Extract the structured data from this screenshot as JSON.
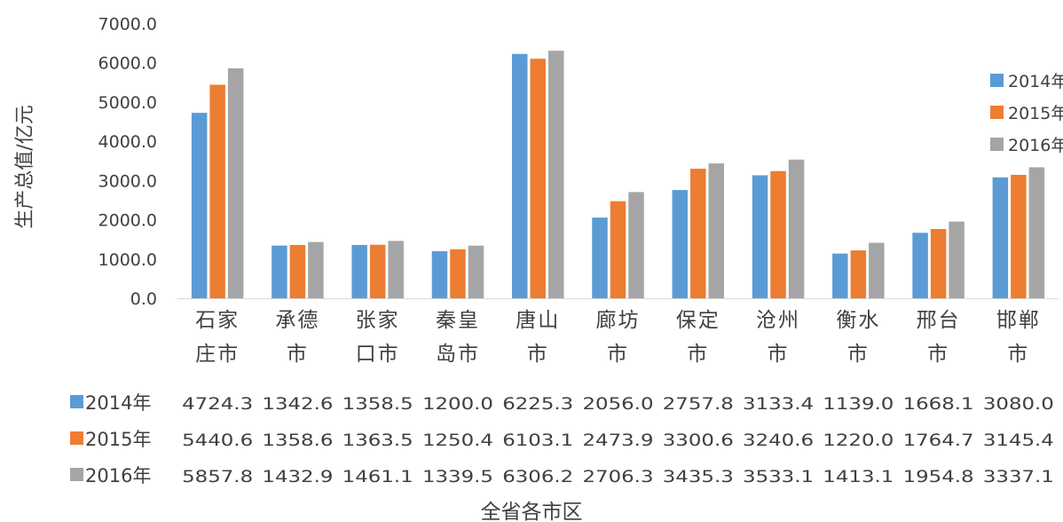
{
  "chart_data": {
    "type": "bar",
    "title": "",
    "xlabel": "全省各市区",
    "ylabel": "生产总值/亿元",
    "ylim": [
      0,
      7000
    ],
    "yticks": [
      "0.0",
      "1000.0",
      "2000.0",
      "3000.0",
      "4000.0",
      "5000.0",
      "6000.0",
      "7000.0"
    ],
    "categories": [
      [
        "石家",
        "庄市"
      ],
      [
        "承德",
        "市"
      ],
      [
        "张家",
        "口市"
      ],
      [
        "秦皇",
        "岛市"
      ],
      [
        "唐山",
        "市"
      ],
      [
        "廊坊",
        "市"
      ],
      [
        "保定",
        "市"
      ],
      [
        "沧州",
        "市"
      ],
      [
        "衡水",
        "市"
      ],
      [
        "邢台",
        "市"
      ],
      [
        "邯郸",
        "市"
      ]
    ],
    "series": [
      {
        "name": "2014年",
        "color": "#5b9bd5",
        "values": [
          4724.3,
          1342.6,
          1358.5,
          1200.0,
          6225.3,
          2056.0,
          2757.8,
          3133.4,
          1139.0,
          1668.1,
          3080.0
        ],
        "labels": [
          "4724.3",
          "1342.6",
          "1358.5",
          "1200.0",
          "6225.3",
          "2056.0",
          "2757.8",
          "3133.4",
          "1139.0",
          "1668.1",
          "3080.0"
        ]
      },
      {
        "name": "2015年",
        "color": "#ed7d31",
        "values": [
          5440.6,
          1358.6,
          1363.5,
          1250.4,
          6103.1,
          2473.9,
          3300.6,
          3240.6,
          1220.0,
          1764.7,
          3145.4
        ],
        "labels": [
          "5440.6",
          "1358.6",
          "1363.5",
          "1250.4",
          "6103.1",
          "2473.9",
          "3300.6",
          "3240.6",
          "1220.0",
          "1764.7",
          "3145.4"
        ]
      },
      {
        "name": "2016年",
        "color": "#a5a5a5",
        "values": [
          5857.8,
          1432.9,
          1461.1,
          1339.5,
          6306.2,
          2706.3,
          3435.3,
          3533.1,
          1413.1,
          1954.8,
          3337.1
        ],
        "labels": [
          "5857.8",
          "1432.9",
          "1461.1",
          "1339.5",
          "6306.2",
          "2706.3",
          "3435.3",
          "3533.1",
          "1413.1",
          "1954.8",
          "3337.1"
        ]
      }
    ],
    "legend": "right",
    "data_table": true,
    "grid": false
  }
}
